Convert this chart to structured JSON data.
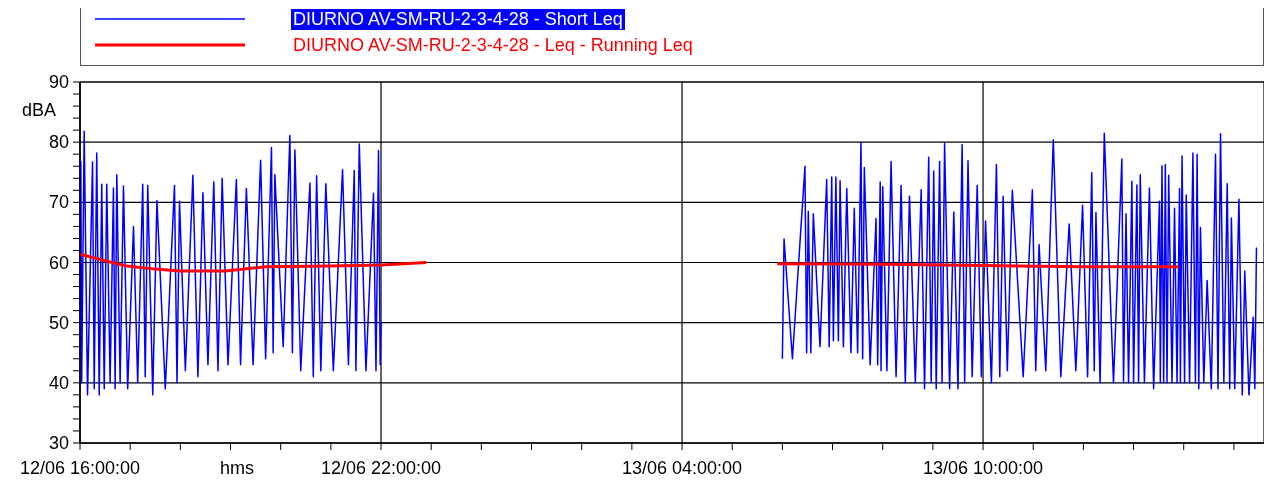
{
  "chart_data": {
    "type": "line",
    "xlabel": "hms",
    "ylabel": "dBA",
    "legend": "top",
    "grid": true,
    "marker": "none",
    "line_style": "solid",
    "xlim": [
      "--06-12T16:00",
      "--06-13T15:36"
    ],
    "ylim": [
      30,
      90
    ],
    "xticks": [
      {
        "value": "--06-12T16:00",
        "label": "12/06 16:00:00"
      },
      {
        "value": "--06-12T17:00",
        "label": null
      },
      {
        "value": "--06-12T18:00",
        "label": null
      },
      {
        "value": "--06-12T19:00",
        "label": null
      },
      {
        "value": "--06-12T20:00",
        "label": null
      },
      {
        "value": "--06-12T21:00",
        "label": null
      },
      {
        "value": "--06-12T22:00",
        "label": "12/06 22:00:00"
      },
      {
        "value": "--06-12T23:00",
        "label": null
      },
      {
        "value": "--06-13T00:00",
        "label": null
      },
      {
        "value": "--06-13T01:00",
        "label": null
      },
      {
        "value": "--06-13T02:00",
        "label": null
      },
      {
        "value": "--06-13T03:00",
        "label": null
      },
      {
        "value": "--06-13T04:00",
        "label": "13/06 04:00:00"
      },
      {
        "value": "--06-13T05:00",
        "label": null
      },
      {
        "value": "--06-13T06:00",
        "label": null
      },
      {
        "value": "--06-13T07:00",
        "label": null
      },
      {
        "value": "--06-13T08:00",
        "label": null
      },
      {
        "value": "--06-13T09:00",
        "label": null
      },
      {
        "value": "--06-13T10:00",
        "label": "13/06 10:00:00"
      },
      {
        "value": "--06-13T11:00",
        "label": null
      },
      {
        "value": "--06-13T12:00",
        "label": null
      },
      {
        "value": "--06-13T13:00",
        "label": null
      },
      {
        "value": "--06-13T14:00",
        "label": null
      },
      {
        "value": "--06-13T15:00",
        "label": null
      }
    ],
    "yticks": [
      30,
      {
        "value": 32,
        "label": null
      },
      {
        "value": 34,
        "label": null
      },
      {
        "value": 36,
        "label": null
      },
      {
        "value": 38,
        "label": null
      },
      40,
      {
        "value": 42,
        "label": null
      },
      {
        "value": 44,
        "label": null
      },
      {
        "value": 46,
        "label": null
      },
      {
        "value": 48,
        "label": null
      },
      50,
      {
        "value": 52,
        "label": null
      },
      {
        "value": 54,
        "label": null
      },
      {
        "value": 56,
        "label": null
      },
      {
        "value": 58,
        "label": null
      },
      60,
      {
        "value": 62,
        "label": null
      },
      {
        "value": 64,
        "label": null
      },
      {
        "value": 66,
        "label": null
      },
      {
        "value": 68,
        "label": null
      },
      70,
      {
        "value": 72,
        "label": null
      },
      {
        "value": 74,
        "label": null
      },
      {
        "value": 76,
        "label": null
      },
      {
        "value": 78,
        "label": null
      },
      80,
      {
        "value": 82,
        "label": null
      },
      {
        "value": 84,
        "label": null
      },
      {
        "value": 86,
        "label": null
      },
      {
        "value": 88,
        "label": null
      },
      90
    ],
    "series": [
      {
        "name": "DIURNO AV-SM-RU-2-3-4-28 - Short Leq",
        "color": "#0000ff",
        "x": [
          "--06-12T16:00",
          "--06-12T16:01",
          "--06-12T16:02",
          "--06-12T16:05",
          "--06-12T16:09",
          "--06-12T16:15",
          "--06-12T16:17",
          "--06-12T16:20",
          "--06-12T16:23",
          "--06-12T16:26",
          "--06-12T16:29",
          "--06-12T16:32",
          "--06-12T16:36",
          "--06-12T16:40",
          "--06-12T16:42",
          "--06-12T16:44",
          "--06-12T16:48",
          "--06-12T16:52",
          "--06-12T16:57",
          "--06-12T17:04",
          "--06-12T17:09",
          "--06-12T17:15",
          "--06-12T17:18",
          "--06-12T17:21",
          "--06-12T17:27",
          "--06-12T17:32",
          "--06-12T17:42",
          "--06-12T17:53",
          "--06-12T17:56",
          "--06-12T17:59",
          "--06-12T18:06",
          "--06-12T18:15",
          "--06-12T18:21",
          "--06-12T18:27",
          "--06-12T18:33",
          "--06-12T18:40",
          "--06-12T18:45",
          "--06-12T18:50",
          "--06-12T18:57",
          "--06-12T19:07",
          "--06-12T19:12",
          "--06-12T19:19",
          "--06-12T19:27",
          "--06-12T19:36",
          "--06-12T19:42",
          "--06-12T19:49",
          "--06-12T19:51",
          "--06-12T19:53",
          "--06-12T20:03",
          "--06-12T20:11",
          "--06-12T20:14",
          "--06-12T20:17",
          "--06-12T20:24",
          "--06-12T20:35",
          "--06-12T20:39",
          "--06-12T20:43",
          "--06-12T20:48",
          "--06-12T20:54",
          "--06-12T21:03",
          "--06-12T21:14",
          "--06-12T21:21",
          "--06-12T21:28",
          "--06-12T21:30",
          "--06-12T21:34",
          "--06-12T21:42",
          "--06-12T21:51",
          "--06-12T21:54",
          "--06-12T21:57",
          "--06-12T21:59",
          "--06-12T22:00",
          "--06-13T02:00",
          "--06-13T06:00",
          "--06-13T06:02",
          "--06-13T06:12",
          "--06-13T06:27",
          "--06-13T06:29",
          "--06-13T06:31",
          "--06-13T06:34",
          "--06-13T06:37",
          "--06-13T06:45",
          "--06-13T06:53",
          "--06-13T06:56",
          "--06-13T06:59",
          "--06-13T07:01",
          "--06-13T07:04",
          "--06-13T07:07",
          "--06-13T07:09",
          "--06-13T07:13",
          "--06-13T07:17",
          "--06-13T07:22",
          "--06-13T07:26",
          "--06-13T07:30",
          "--06-13T07:34",
          "--06-13T07:36",
          "--06-13T07:38",
          "--06-13T07:45",
          "--06-13T07:52",
          "--06-13T07:54",
          "--06-13T07:57",
          "--06-13T07:58",
          "--06-13T08:00",
          "--06-13T08:05",
          "--06-13T08:10",
          "--06-13T08:16",
          "--06-13T08:22",
          "--06-13T08:27",
          "--06-13T08:32",
          "--06-13T08:39",
          "--06-13T08:46",
          "--06-13T08:50",
          "--06-13T08:55",
          "--06-13T08:58",
          "--06-13T09:01",
          "--06-13T09:04",
          "--06-13T09:08",
          "--06-13T09:11",
          "--06-13T09:14",
          "--06-13T09:20",
          "--06-13T09:25",
          "--06-13T09:30",
          "--06-13T09:35",
          "--06-13T09:38",
          "--06-13T09:42",
          "--06-13T09:47",
          "--06-13T09:53",
          "--06-13T09:58",
          "--06-13T10:03",
          "--06-13T10:10",
          "--06-13T10:16",
          "--06-13T10:20",
          "--06-13T10:24",
          "--06-13T10:29",
          "--06-13T10:35",
          "--06-13T10:48",
          "--06-13T10:59",
          "--06-13T11:03",
          "--06-13T11:07",
          "--06-13T11:15",
          "--06-13T11:24",
          "--06-13T11:33",
          "--06-13T11:43",
          "--06-13T11:51",
          "--06-13T11:59",
          "--06-13T12:05",
          "--06-13T12:10",
          "--06-13T12:13",
          "--06-13T12:15",
          "--06-13T12:20",
          "--06-13T12:25",
          "--06-13T12:36",
          "--06-13T12:46",
          "--06-13T12:48",
          "--06-13T12:51",
          "--06-13T12:54",
          "--06-13T12:58",
          "--06-13T13:00",
          "--06-13T13:04",
          "--06-13T13:06",
          "--06-13T13:08",
          "--06-13T13:13",
          "--06-13T13:19",
          "--06-13T13:24",
          "--06-13T13:31",
          "--06-13T13:32",
          "--06-13T13:34",
          "--06-13T13:36",
          "--06-13T13:38",
          "--06-13T13:40",
          "--06-13T13:42",
          "--06-13T13:46",
          "--06-13T13:49",
          "--06-13T13:52",
          "--06-13T13:55",
          "--06-13T13:56",
          "--06-13T13:58",
          "--06-13T14:01",
          "--06-13T14:03",
          "--06-13T14:07",
          "--06-13T14:11",
          "--06-13T14:14",
          "--06-13T14:16",
          "--06-13T14:18",
          "--06-13T14:20",
          "--06-13T14:24",
          "--06-13T14:28",
          "--06-13T14:33",
          "--06-13T14:38",
          "--06-13T14:41",
          "--06-13T14:44",
          "--06-13T14:48",
          "--06-13T14:52",
          "--06-13T14:55",
          "--06-13T14:57",
          "--06-13T15:01",
          "--06-13T15:06",
          "--06-13T15:10",
          "--06-13T15:13",
          "--06-13T15:18",
          "--06-13T15:23",
          "--06-13T15:25",
          "--06-13T15:27"
        ],
        "values": [
          45,
          76.8,
          40,
          81.8,
          38,
          76.7,
          39,
          78.2,
          38,
          73,
          39,
          73,
          40,
          72.4,
          39,
          74.6,
          40,
          72.7,
          39,
          66,
          40,
          73,
          41,
          72.8,
          38,
          70.3,
          39,
          72.8,
          40,
          70.2,
          42,
          74.5,
          41,
          71.6,
          43,
          73.4,
          42,
          74,
          43,
          73.8,
          43,
          72.3,
          43,
          77,
          44,
          79.1,
          45,
          74.6,
          46,
          81.1,
          45,
          78.7,
          42,
          73.2,
          41,
          74.4,
          42,
          73.1,
          42,
          75.4,
          43,
          75.3,
          42,
          79.7,
          42,
          71.5,
          42,
          78.6,
          43,
          50,
          null,
          44,
          63.9,
          44,
          76,
          45,
          68.5,
          45,
          68.1,
          46,
          73.8,
          46,
          74.2,
          47,
          74.2,
          47,
          73.6,
          46,
          72.3,
          45,
          69,
          45,
          80,
          44,
          75.8,
          43,
          67.3,
          43,
          73.4,
          42,
          72.6,
          42,
          76.8,
          41,
          72.8,
          40,
          71,
          40,
          72.1,
          39,
          77.5,
          40,
          75.2,
          39,
          76.8,
          40,
          79.8,
          39,
          68.4,
          39,
          79.6,
          40,
          76.9,
          41,
          72.8,
          41,
          66.9,
          40,
          76.3,
          41,
          71,
          42,
          72,
          41,
          72.1,
          42,
          63,
          42,
          80.4,
          41,
          66.4,
          42,
          69.5,
          41,
          74.9,
          42,
          68.3,
          40,
          81.5,
          40,
          77.2,
          40,
          68.1,
          40,
          73.5,
          40,
          72.9,
          40,
          74.6,
          40,
          72.4,
          39,
          70.2,
          40,
          76.1,
          40,
          76.3,
          40,
          74.5,
          40,
          69,
          40,
          72.3,
          40,
          77.7,
          40,
          71.2,
          40,
          78.2,
          40,
          78,
          39,
          65.8,
          40,
          57,
          39,
          78,
          39,
          81.4,
          40,
          73.1,
          39,
          67.4,
          39,
          70.5,
          38,
          58.6,
          38,
          50.9,
          39,
          62.5
        ]
      },
      {
        "name": "DIURNO AV-SM-RU-2-3-4-28 - Leq - Running Leq",
        "color": "#ff0000",
        "x": [
          "--06-12T16:00",
          "--06-12T16:30",
          "--06-12T16:56",
          "--06-12T17:30",
          "--06-12T18:00",
          "--06-12T18:54",
          "--06-12T19:42",
          "--06-12T21:00",
          "--06-12T22:00",
          "--06-12T22:54",
          "--06-13T02:00",
          "--06-13T05:54",
          "--06-13T08:00",
          "--06-13T10:00",
          "--06-13T12:00",
          "--06-13T13:54"
        ],
        "values": [
          61.4,
          60.3,
          59.4,
          58.9,
          58.6,
          58.6,
          59.3,
          59.4,
          59.6,
          60.0,
          null,
          59.8,
          59.7,
          59.5,
          59.3,
          59.3
        ]
      }
    ]
  }
}
